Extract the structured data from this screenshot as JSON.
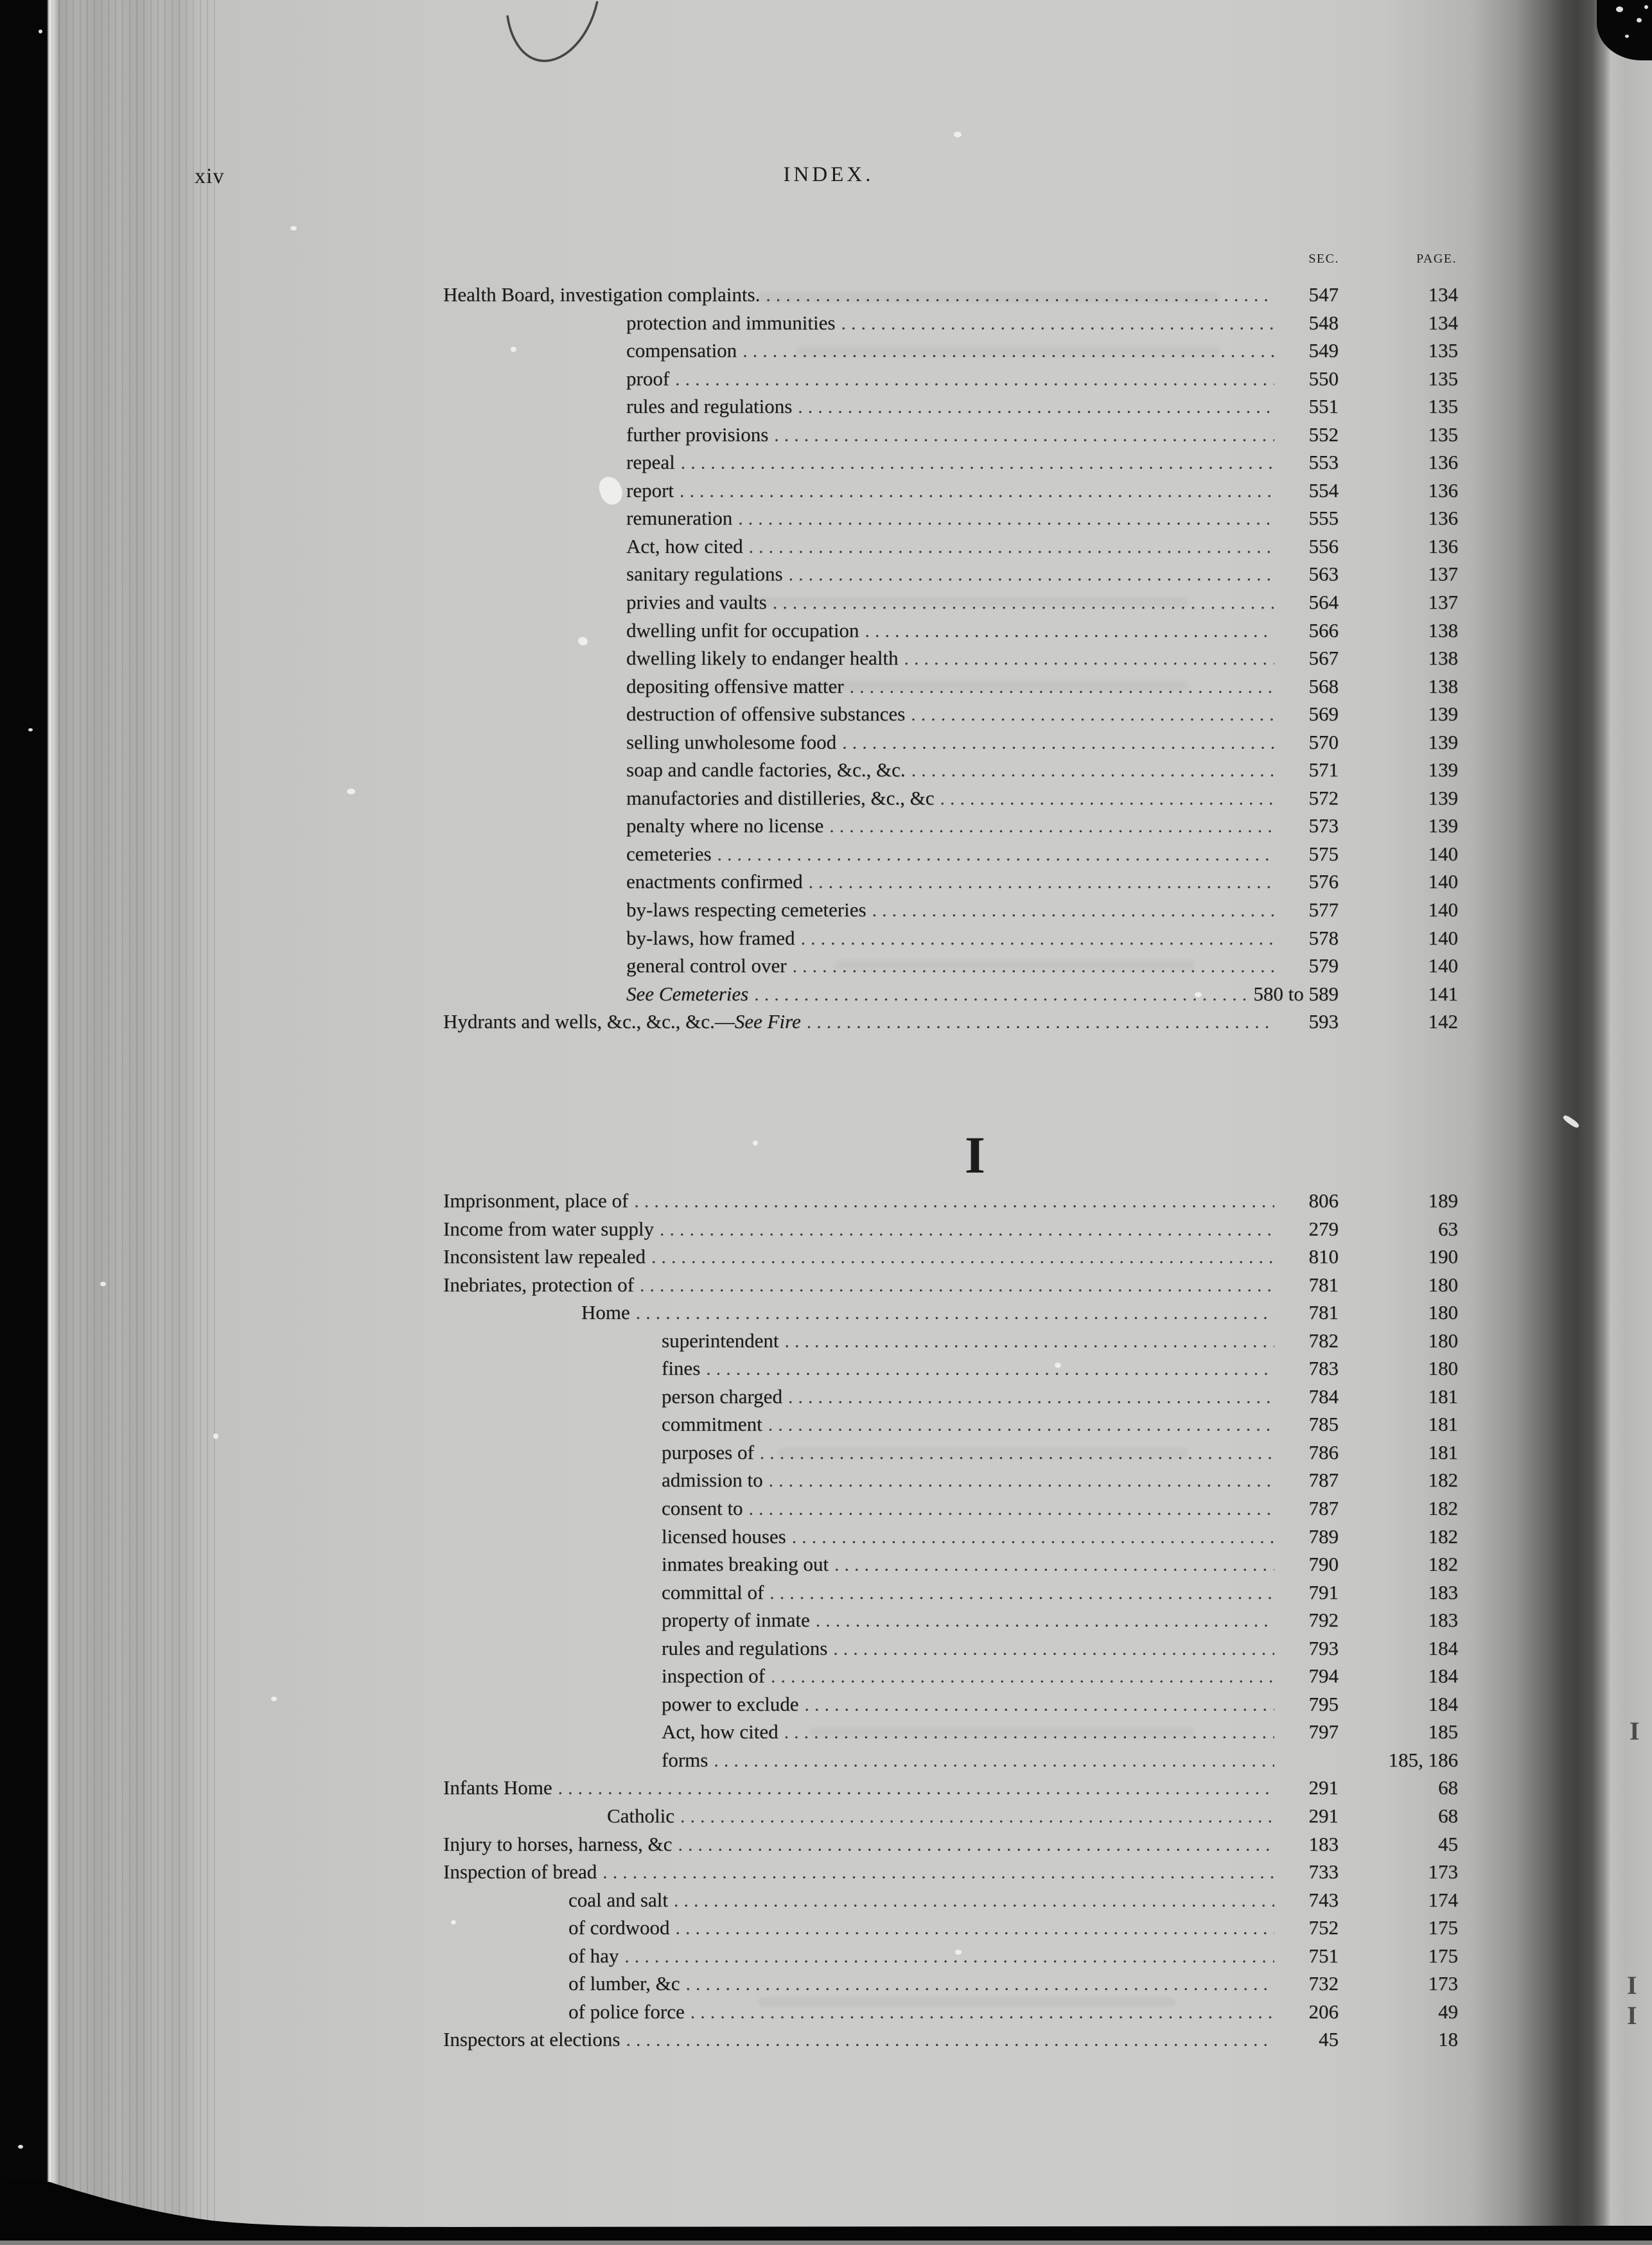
{
  "page": {
    "folio": "xiv",
    "title": "INDEX.",
    "col_headers": {
      "sec": "SEC.",
      "page": "PAGE."
    },
    "section_heading": "I",
    "edge_bleed": [
      "I",
      "I",
      "I"
    ]
  },
  "index_blocks": {
    "block1": {
      "rows": [
        {
          "indent": 0,
          "label": "Health Board, investigation complaints.",
          "sec": "547",
          "page": "134"
        },
        {
          "indent": 1,
          "label": "protection and immunities",
          "sec": "548",
          "page": "134"
        },
        {
          "indent": 1,
          "label": "compensation",
          "sec": "549",
          "page": "135"
        },
        {
          "indent": 1,
          "label": "proof",
          "sec": "550",
          "page": "135"
        },
        {
          "indent": 1,
          "label": "rules and regulations",
          "sec": "551",
          "page": "135"
        },
        {
          "indent": 1,
          "label": "further provisions",
          "sec": "552",
          "page": "135"
        },
        {
          "indent": 1,
          "label": "repeal",
          "sec": "553",
          "page": "136"
        },
        {
          "indent": 1,
          "label": "report",
          "sec": "554",
          "page": "136"
        },
        {
          "indent": 1,
          "label": "remuneration",
          "sec": "555",
          "page": "136"
        },
        {
          "indent": 1,
          "label": "Act, how cited",
          "sec": "556",
          "page": "136"
        },
        {
          "indent": 1,
          "label": "sanitary regulations",
          "sec": "563",
          "page": "137"
        },
        {
          "indent": 1,
          "label": "privies and vaults",
          "sec": "564",
          "page": "137"
        },
        {
          "indent": 1,
          "label": "dwelling unfit for occupation",
          "sec": "566",
          "page": "138"
        },
        {
          "indent": 1,
          "label": "dwelling likely to endanger health",
          "sec": "567",
          "page": "138"
        },
        {
          "indent": 1,
          "label": "depositing offensive matter",
          "sec": "568",
          "page": "138"
        },
        {
          "indent": 1,
          "label": "destruction of offensive substances",
          "sec": "569",
          "page": "139"
        },
        {
          "indent": 1,
          "label": "selling unwholesome food",
          "sec": "570",
          "page": "139"
        },
        {
          "indent": 1,
          "label": "soap and candle factories, &c., &c.",
          "sec": "571",
          "page": "139"
        },
        {
          "indent": 1,
          "label": "manufactories and distilleries, &c., &c",
          "sec": "572",
          "page": "139"
        },
        {
          "indent": 1,
          "label": "penalty where no license",
          "sec": "573",
          "page": "139"
        },
        {
          "indent": 1,
          "label": "cemeteries",
          "sec": "575",
          "page": "140"
        },
        {
          "indent": 1,
          "label": "enactments confirmed",
          "sec": "576",
          "page": "140"
        },
        {
          "indent": 1,
          "label": "by-laws respecting cemeteries",
          "sec": "577",
          "page": "140"
        },
        {
          "indent": 1,
          "label": "by-laws, how framed",
          "sec": "578",
          "page": "140"
        },
        {
          "indent": 1,
          "label": "general control over",
          "sec": "579",
          "page": "140"
        },
        {
          "indent": 1,
          "label": "See Cemeteries",
          "italic": true,
          "sec": "580 to 589",
          "page": "141"
        },
        {
          "indent": 0,
          "label": "Hydrants and wells, &c., &c., &c.—",
          "label_italic": "See Fire",
          "sec": "593",
          "page": "142"
        }
      ]
    },
    "block2": {
      "rows": [
        {
          "indent": 0,
          "label": "Imprisonment, place of",
          "sec": "806",
          "page": "189"
        },
        {
          "indent": 0,
          "label": "Income from water supply",
          "sec": "279",
          "page": "63"
        },
        {
          "indent": 0,
          "label": "Inconsistent law repealed",
          "sec": "810",
          "page": "190"
        },
        {
          "indent": 0,
          "label": "Inebriates, protection of",
          "sec": "781",
          "page": "180"
        },
        {
          "indent": 2,
          "label": "Home",
          "sec": "781",
          "page": "180"
        },
        {
          "indent": 3,
          "label": "superintendent",
          "sec": "782",
          "page": "180"
        },
        {
          "indent": 3,
          "label": "fines",
          "sec": "783",
          "page": "180"
        },
        {
          "indent": 3,
          "label": "person charged",
          "sec": "784",
          "page": "181"
        },
        {
          "indent": 3,
          "label": "commitment",
          "sec": "785",
          "page": "181"
        },
        {
          "indent": 3,
          "label": "purposes of",
          "sec": "786",
          "page": "181"
        },
        {
          "indent": 3,
          "label": "admission to",
          "sec": "787",
          "page": "182"
        },
        {
          "indent": 3,
          "label": "consent to",
          "sec": "787",
          "page": "182"
        },
        {
          "indent": 3,
          "label": "licensed houses",
          "sec": "789",
          "page": "182"
        },
        {
          "indent": 3,
          "label": "inmates breaking out",
          "sec": "790",
          "page": "182"
        },
        {
          "indent": 3,
          "label": "committal of",
          "sec": "791",
          "page": "183"
        },
        {
          "indent": 3,
          "label": "property of inmate",
          "sec": "792",
          "page": "183"
        },
        {
          "indent": 3,
          "label": "rules and regulations",
          "sec": "793",
          "page": "184"
        },
        {
          "indent": 3,
          "label": "inspection of",
          "sec": "794",
          "page": "184"
        },
        {
          "indent": 3,
          "label": "power to exclude",
          "sec": "795",
          "page": "184"
        },
        {
          "indent": 3,
          "label": "Act, how cited",
          "sec": "797",
          "page": "185"
        },
        {
          "indent": 3,
          "label": "forms",
          "sec": "",
          "page": "185, 186"
        },
        {
          "indent": 0,
          "label": "Infants Home",
          "sec": "291",
          "page": "68"
        },
        {
          "indent": 4,
          "label": "Catholic",
          "sec": "291",
          "page": "68"
        },
        {
          "indent": 0,
          "label": "Injury to horses, harness, &c",
          "sec": "183",
          "page": "45"
        },
        {
          "indent": 0,
          "label": "Inspection of bread",
          "sec": "733",
          "page": "173"
        },
        {
          "indent": 5,
          "label": "coal and salt",
          "sec": "743",
          "page": "174"
        },
        {
          "indent": 5,
          "label": "of cordwood",
          "sec": "752",
          "page": "175"
        },
        {
          "indent": 5,
          "label": "of hay",
          "sec": "751",
          "page": "175"
        },
        {
          "indent": 5,
          "label": "of lumber, &c",
          "sec": "732",
          "page": "173"
        },
        {
          "indent": 5,
          "label": "of police force",
          "sec": "206",
          "page": "49"
        },
        {
          "indent": 0,
          "label": "Inspectors at elections",
          "sec": "45",
          "page": "18"
        }
      ]
    }
  }
}
